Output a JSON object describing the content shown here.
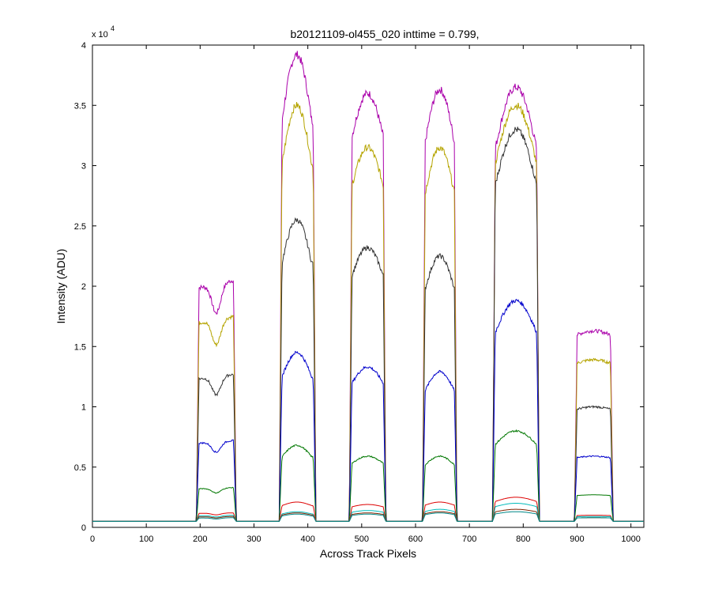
{
  "chart_data": {
    "type": "line",
    "title": "b20121109-ol455_020 inttime = 0.799,",
    "xlabel": "Across Track Pixels",
    "ylabel": "Intensity (ADU)",
    "y_exponent": "x 10",
    "y_exponent_power": "4",
    "xlim": [
      0,
      1024
    ],
    "ylim": [
      0,
      4
    ],
    "xticks": [
      0,
      100,
      200,
      300,
      400,
      500,
      600,
      700,
      800,
      900,
      1000
    ],
    "yticks": [
      0,
      0.5,
      1,
      1.5,
      2,
      2.5,
      3,
      3.5,
      4
    ],
    "grid": false,
    "baseline": 0.05,
    "peaks": [
      {
        "x_start": 198,
        "x_end": 262
      },
      {
        "x_start": 352,
        "x_end": 410
      },
      {
        "x_start": 482,
        "x_end": 540
      },
      {
        "x_start": 618,
        "x_end": 672
      },
      {
        "x_start": 748,
        "x_end": 825
      },
      {
        "x_start": 900,
        "x_end": 962
      }
    ],
    "series": [
      {
        "color": "#aa00aa",
        "peak_values": [
          2.05,
          3.92,
          3.6,
          3.63,
          3.65,
          1.63
        ]
      },
      {
        "color": "#b5a400",
        "peak_values": [
          1.75,
          3.5,
          3.15,
          3.15,
          3.5,
          1.39
        ]
      },
      {
        "color": "#333333",
        "peak_values": [
          1.27,
          2.55,
          2.32,
          2.25,
          3.3,
          1.0
        ]
      },
      {
        "color": "#0000cc",
        "peak_values": [
          0.72,
          1.45,
          1.33,
          1.29,
          1.88,
          0.59
        ]
      },
      {
        "color": "#007700",
        "peak_values": [
          0.33,
          0.68,
          0.59,
          0.59,
          0.8,
          0.27
        ]
      },
      {
        "color": "#dd0000",
        "peak_values": [
          0.12,
          0.21,
          0.19,
          0.21,
          0.25,
          0.1
        ]
      },
      {
        "color": "#00bbbb",
        "peak_values": [
          0.1,
          0.13,
          0.14,
          0.15,
          0.2,
          0.09
        ]
      },
      {
        "color": "#7f2200",
        "peak_values": [
          0.09,
          0.12,
          0.12,
          0.13,
          0.15,
          0.08
        ]
      },
      {
        "color": "#008888",
        "peak_values": [
          0.08,
          0.11,
          0.11,
          0.12,
          0.13,
          0.08
        ]
      }
    ]
  }
}
